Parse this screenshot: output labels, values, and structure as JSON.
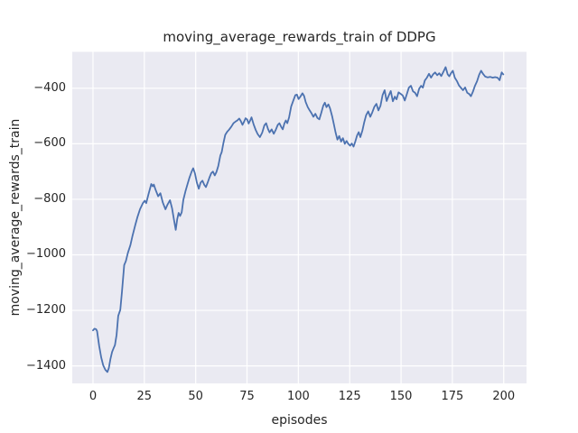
{
  "figure": {
    "kind": "matplotlib-seaborn-figure",
    "background": "#ffffff"
  },
  "chart_data": {
    "type": "line",
    "title": "moving_average_rewards_train of DDPG",
    "xlabel": "episodes",
    "ylabel": "moving_average_rewards_train",
    "xlim": [
      -10.1,
      211.1
    ],
    "ylim": [
      -1463,
      -269
    ],
    "xticks": [
      0,
      25,
      50,
      75,
      100,
      125,
      150,
      175,
      200
    ],
    "xticklabels": [
      "0",
      "25",
      "50",
      "75",
      "100",
      "125",
      "150",
      "175",
      "200"
    ],
    "yticks": [
      -400,
      -600,
      -800,
      -1000,
      -1200,
      -1400
    ],
    "yticklabels": [
      "−400",
      "−600",
      "−800",
      "−1000",
      "−1200",
      "−1400"
    ],
    "grid": true,
    "legend": false,
    "style": {
      "plot_background": "#eaeaf2",
      "grid_color": "#ffffff",
      "line_color": "#4c72b0",
      "text_color": "#262626",
      "line_width": 1.8
    },
    "series": [
      {
        "name": "moving_average_rewards_train",
        "x": [
          0,
          0.7,
          1.5,
          2,
          3,
          4,
          5,
          6,
          7,
          7.7,
          8.5,
          9.3,
          10,
          10.7,
          11.5,
          12.3,
          13.3,
          14.1,
          15.2,
          16,
          17,
          18.2,
          19.2,
          20.7,
          21.7,
          22.9,
          24.3,
          25.2,
          25.9,
          27,
          28.4,
          29.1,
          29.6,
          30.4,
          31.7,
          32.8,
          34,
          35.3,
          36.3,
          37.5,
          38.5,
          39.4,
          40.3,
          41,
          41.7,
          42.4,
          43.2,
          44,
          45,
          46,
          47,
          48,
          48.8,
          49.6,
          50.6,
          51.5,
          52.4,
          53.3,
          54.2,
          55,
          55.8,
          56.7,
          57.6,
          58.4,
          59.3,
          60.1,
          61,
          62,
          62.7,
          63.5,
          64.4,
          65.3,
          66.3,
          67.4,
          68.4,
          69.4,
          70.3,
          71.2,
          72,
          72.8,
          73.6,
          74.3,
          75.1,
          75.8,
          76.5,
          77.2,
          78.2,
          79.2,
          80.2,
          81.3,
          82.4,
          83.5,
          84.3,
          85.3,
          86,
          87,
          88,
          89,
          90,
          90.8,
          91.7,
          92.4,
          93.2,
          93.9,
          94.6,
          95.5,
          96.5,
          97.5,
          98.5,
          99.3,
          100.1,
          101,
          102,
          102.8,
          103.6,
          104.6,
          105.5,
          106.4,
          107.3,
          108.3,
          109.3,
          110.2,
          111.2,
          112.1,
          112.9,
          113.7,
          114.6,
          115.4,
          116.4,
          117.3,
          118.1,
          119,
          119.9,
          120.8,
          121.7,
          122.6,
          123.5,
          124.3,
          125.2,
          126,
          126.9,
          127.8,
          128.6,
          129.4,
          130.2,
          131.2,
          132.1,
          133,
          134,
          135,
          136,
          137,
          138,
          139,
          140,
          141,
          142,
          143,
          144,
          145,
          146,
          147,
          147.8,
          148.8,
          149.8,
          150.8,
          151.8,
          152.8,
          153.8,
          154.8,
          155.8,
          156.8,
          157.8,
          158.8,
          159.8,
          160.6,
          161.6,
          162.6,
          163.6,
          164.6,
          165.6,
          166.6,
          167.6,
          168.6,
          169.6,
          170.6,
          171.7,
          172.7,
          173.5,
          174.4,
          175.2,
          176.2,
          177.2,
          178.2,
          179.2,
          180.2,
          181.2,
          182.2,
          183.2,
          184,
          185,
          186,
          187,
          188,
          189,
          190,
          191,
          192.2,
          193.4,
          194.6,
          195.8,
          197,
          198,
          199,
          199.8
        ],
        "y": [
          -1272,
          -1266,
          -1268,
          -1275,
          -1328,
          -1370,
          -1398,
          -1414,
          -1422,
          -1408,
          -1375,
          -1350,
          -1337,
          -1325,
          -1288,
          -1220,
          -1198,
          -1135,
          -1037,
          -1022,
          -993,
          -965,
          -933,
          -890,
          -863,
          -836,
          -814,
          -805,
          -814,
          -782,
          -745,
          -753,
          -747,
          -764,
          -789,
          -778,
          -812,
          -836,
          -819,
          -803,
          -832,
          -873,
          -910,
          -872,
          -849,
          -860,
          -847,
          -802,
          -772,
          -746,
          -722,
          -701,
          -688,
          -706,
          -740,
          -762,
          -740,
          -733,
          -748,
          -756,
          -740,
          -722,
          -706,
          -700,
          -714,
          -702,
          -680,
          -642,
          -630,
          -597,
          -568,
          -557,
          -549,
          -538,
          -526,
          -520,
          -516,
          -509,
          -519,
          -532,
          -520,
          -508,
          -513,
          -527,
          -517,
          -505,
          -530,
          -550,
          -565,
          -576,
          -560,
          -533,
          -526,
          -548,
          -559,
          -548,
          -564,
          -550,
          -532,
          -526,
          -540,
          -548,
          -527,
          -516,
          -526,
          -505,
          -466,
          -445,
          -425,
          -423,
          -439,
          -430,
          -418,
          -428,
          -450,
          -468,
          -480,
          -490,
          -503,
          -492,
          -507,
          -512,
          -488,
          -463,
          -452,
          -468,
          -458,
          -472,
          -500,
          -530,
          -558,
          -585,
          -572,
          -592,
          -580,
          -600,
          -590,
          -600,
          -607,
          -599,
          -610,
          -590,
          -570,
          -558,
          -576,
          -552,
          -521,
          -497,
          -483,
          -503,
          -487,
          -467,
          -456,
          -480,
          -463,
          -425,
          -407,
          -446,
          -427,
          -410,
          -447,
          -430,
          -440,
          -415,
          -420,
          -426,
          -444,
          -422,
          -398,
          -391,
          -411,
          -416,
          -429,
          -402,
          -391,
          -398,
          -372,
          -362,
          -348,
          -362,
          -350,
          -343,
          -353,
          -346,
          -356,
          -341,
          -324,
          -350,
          -357,
          -345,
          -337,
          -362,
          -374,
          -390,
          -399,
          -407,
          -397,
          -416,
          -421,
          -429,
          -413,
          -391,
          -375,
          -352,
          -337,
          -349,
          -358,
          -361,
          -359,
          -362,
          -360,
          -362,
          -371,
          -343,
          -350
        ]
      }
    ]
  }
}
